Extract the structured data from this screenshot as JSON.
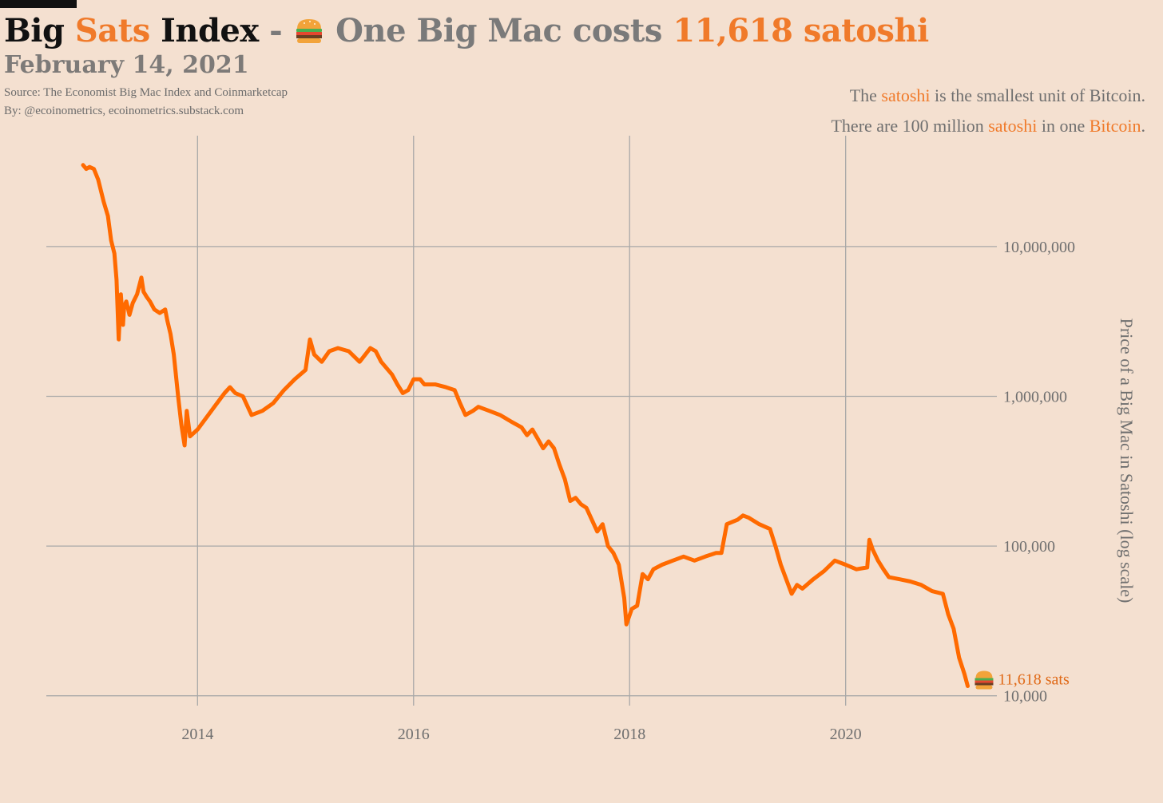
{
  "header": {
    "title_part1": "Big",
    "title_part2": "Sats",
    "title_part3": "Index",
    "title_dash": "-",
    "title_part4": "One Big Mac costs",
    "title_value": "11,618 satoshi",
    "date": "February 14, 2021",
    "source": "Source: The Economist Big Mac Index and Coinmarketcap",
    "byline": "By: @ecoinometrics, ecoinometrics.substack.com"
  },
  "note": {
    "line1_a": "The",
    "line1_hl": "satoshi",
    "line1_b": "is the smallest unit of Bitcoin.",
    "line2_a": "There are 100 million",
    "line2_hl1": "satoshi",
    "line2_b": "in one",
    "line2_hl2": "Bitcoin",
    "line2_c": "."
  },
  "colors": {
    "background": "#f4e0d0",
    "line": "#ff6a00",
    "accent": "#f07a2a",
    "grid": "#a8a8a8",
    "text": "#6f6f6f"
  },
  "icons": {
    "title_icon": "burger-icon",
    "end_icon": "burger-icon"
  },
  "chart_data": {
    "type": "line",
    "title": "Big Sats Index",
    "ylabel": "Price of a Big Mac in Satoshi (log scale)",
    "y_scale": "log",
    "y_axis_position": "right",
    "grid": true,
    "xlim": [
      2012.6,
      2021.4
    ],
    "ylim": [
      8600,
      55000000
    ],
    "x_ticks": [
      2014,
      2016,
      2018,
      2020
    ],
    "x_tick_labels": [
      "2014",
      "2016",
      "2018",
      "2020"
    ],
    "y_ticks": [
      10000,
      100000,
      1000000,
      10000000
    ],
    "y_tick_labels": [
      "10,000",
      "100,000",
      "1,000,000",
      "10,000,000"
    ],
    "end_label": "11,618 sats",
    "series": [
      {
        "x": [
          2012.94,
          2012.97,
          2013.0,
          2013.04,
          2013.08,
          2013.13,
          2013.17,
          2013.2,
          2013.23,
          2013.25,
          2013.27,
          2013.29,
          2013.31,
          2013.32,
          2013.34,
          2013.37,
          2013.4,
          2013.44,
          2013.48,
          2013.5,
          2013.53,
          2013.56,
          2013.6,
          2013.65,
          2013.7,
          2013.72,
          2013.75,
          2013.78,
          2013.82,
          2013.85,
          2013.88,
          2013.9,
          2013.93,
          2014.0,
          2014.1,
          2014.18,
          2014.25,
          2014.3,
          2014.35,
          2014.42,
          2014.5,
          2014.6,
          2014.7,
          2014.8,
          2014.9,
          2015.0,
          2015.04,
          2015.08,
          2015.15,
          2015.22,
          2015.3,
          2015.4,
          2015.5,
          2015.6,
          2015.65,
          2015.7,
          2015.8,
          2015.85,
          2015.9,
          2015.95,
          2016.0,
          2016.06,
          2016.1,
          2016.2,
          2016.3,
          2016.38,
          2016.43,
          2016.48,
          2016.55,
          2016.6,
          2016.7,
          2016.8,
          2016.9,
          2017.0,
          2017.05,
          2017.1,
          2017.15,
          2017.2,
          2017.25,
          2017.3,
          2017.35,
          2017.4,
          2017.45,
          2017.5,
          2017.55,
          2017.6,
          2017.65,
          2017.7,
          2017.75,
          2017.8,
          2017.85,
          2017.9,
          2017.95,
          2017.97,
          2018.02,
          2018.07,
          2018.12,
          2018.17,
          2018.22,
          2018.3,
          2018.4,
          2018.5,
          2018.6,
          2018.7,
          2018.8,
          2018.85,
          2018.9,
          2019.0,
          2019.05,
          2019.1,
          2019.2,
          2019.3,
          2019.35,
          2019.4,
          2019.45,
          2019.5,
          2019.55,
          2019.6,
          2019.7,
          2019.8,
          2019.9,
          2020.0,
          2020.1,
          2020.2,
          2020.22,
          2020.25,
          2020.3,
          2020.35,
          2020.4,
          2020.5,
          2020.6,
          2020.7,
          2020.8,
          2020.9,
          2020.95,
          2021.0,
          2021.05,
          2021.1,
          2021.13
        ],
        "y": [
          35000000,
          33000000,
          34000000,
          33000000,
          28000000,
          20000000,
          16000000,
          11000000,
          9000000,
          6000000,
          2400000,
          4800000,
          3000000,
          4000000,
          4300000,
          3500000,
          4200000,
          4800000,
          6200000,
          5000000,
          4600000,
          4300000,
          3800000,
          3600000,
          3800000,
          3200000,
          2600000,
          1900000,
          1000000,
          650000,
          470000,
          800000,
          540000,
          600000,
          750000,
          900000,
          1050000,
          1150000,
          1050000,
          1000000,
          750000,
          800000,
          900000,
          1100000,
          1300000,
          1500000,
          2400000,
          1900000,
          1700000,
          2000000,
          2100000,
          2000000,
          1700000,
          2100000,
          2000000,
          1700000,
          1400000,
          1200000,
          1050000,
          1100000,
          1300000,
          1300000,
          1200000,
          1200000,
          1150000,
          1100000,
          900000,
          750000,
          800000,
          850000,
          800000,
          750000,
          680000,
          620000,
          550000,
          600000,
          520000,
          450000,
          500000,
          450000,
          350000,
          280000,
          200000,
          210000,
          190000,
          180000,
          150000,
          125000,
          140000,
          100000,
          90000,
          75000,
          45000,
          30000,
          38000,
          40000,
          65000,
          60000,
          70000,
          75000,
          80000,
          85000,
          80000,
          85000,
          90000,
          90000,
          140000,
          150000,
          160000,
          155000,
          140000,
          130000,
          100000,
          75000,
          60000,
          48000,
          55000,
          52000,
          60000,
          68000,
          80000,
          75000,
          70000,
          72000,
          110000,
          95000,
          80000,
          70000,
          62000,
          60000,
          58000,
          55000,
          50000,
          48000,
          35000,
          28000,
          18000,
          14000,
          11618
        ]
      }
    ]
  }
}
